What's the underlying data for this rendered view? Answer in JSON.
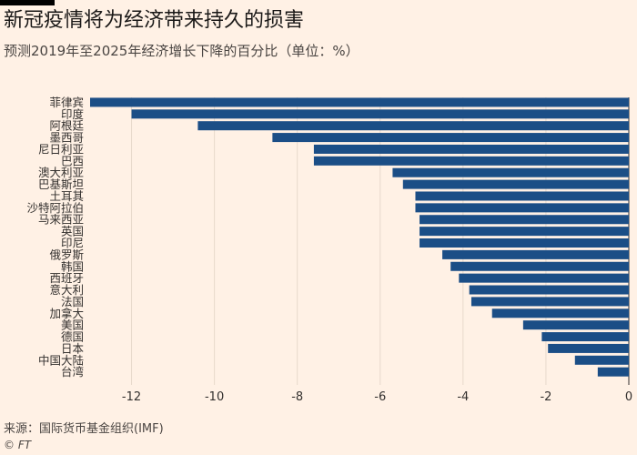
{
  "header": {
    "title": "新冠疫情将为经济带来持久的损害",
    "subtitle": "预测2019年至2025年经济增长下降的百分比（单位：%）"
  },
  "footer": {
    "source": "来源：国际货币基金组织(IMF)",
    "credit": "© FT"
  },
  "colors": {
    "background": "#fff1e5",
    "bar": "#1b4e86",
    "grid": "#e7d9cc",
    "zero_line": "#33302e",
    "text": "#33302e"
  },
  "chart_data": {
    "type": "bar",
    "orientation": "horizontal",
    "title": "新冠疫情将为经济带来持久的损害",
    "subtitle": "预测2019年至2025年经济增长下降的百分比（单位：%）",
    "xlabel": "",
    "ylabel": "",
    "xlim": [
      -13,
      0
    ],
    "xticks": [
      -12,
      -10,
      -8,
      -6,
      -4,
      -2,
      0
    ],
    "grid": true,
    "legend": "none",
    "categories": [
      "菲律宾",
      "印度",
      "阿根廷",
      "墨西哥",
      "尼日利亚",
      "巴西",
      "澳大利亚",
      "巴基斯坦",
      "土耳其",
      "沙特阿拉伯",
      "马来西亚",
      "英国",
      "印尼",
      "俄罗斯",
      "韩国",
      "西班牙",
      "意大利",
      "法国",
      "加拿大",
      "美国",
      "德国",
      "日本",
      "中国大陆",
      "台湾"
    ],
    "values": [
      -13.0,
      -12.0,
      -10.4,
      -8.6,
      -7.6,
      -7.6,
      -5.7,
      -5.45,
      -5.15,
      -5.15,
      -5.05,
      -5.05,
      -5.05,
      -4.5,
      -4.3,
      -4.1,
      -3.85,
      -3.8,
      -3.3,
      -2.55,
      -2.1,
      -1.95,
      -1.3,
      -0.75
    ]
  }
}
